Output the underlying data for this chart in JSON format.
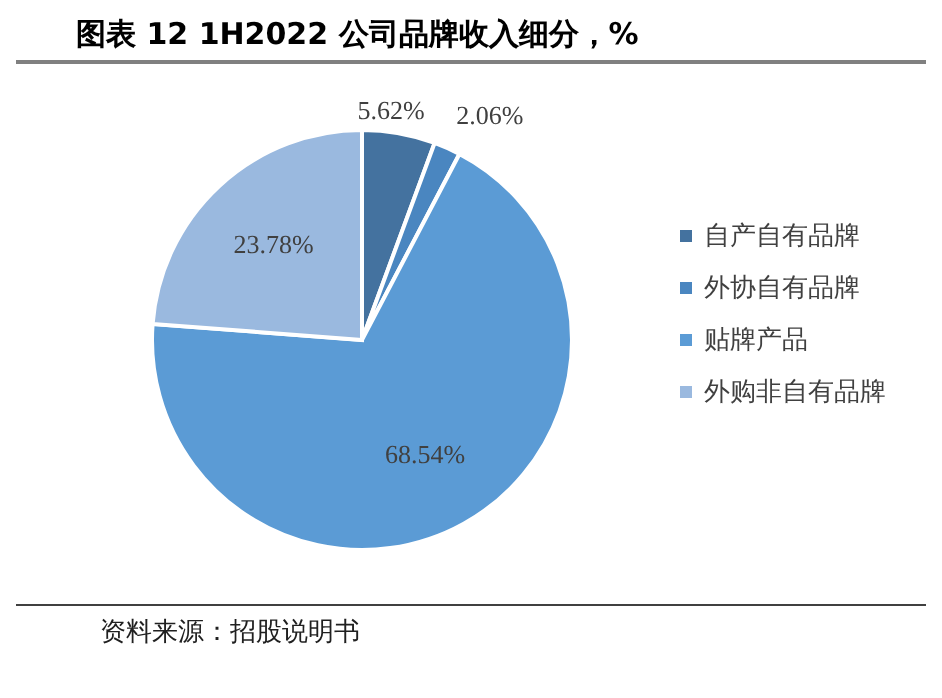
{
  "chart_data": {
    "type": "pie",
    "title": "图表 12 1H2022 公司品牌收入细分，%",
    "categories": [
      "自产自有品牌",
      "外协自有品牌",
      "贴牌产品",
      "外购非自有品牌"
    ],
    "values": [
      5.62,
      2.06,
      68.54,
      23.78
    ],
    "colors": [
      "#44729f",
      "#4a86c0",
      "#5b9bd5",
      "#9ab9df"
    ],
    "value_labels": [
      "5.62%",
      "2.06%",
      "68.54%",
      "23.78%"
    ],
    "legend": "right",
    "annotations": [
      "资料来源：招股说明书"
    ]
  }
}
